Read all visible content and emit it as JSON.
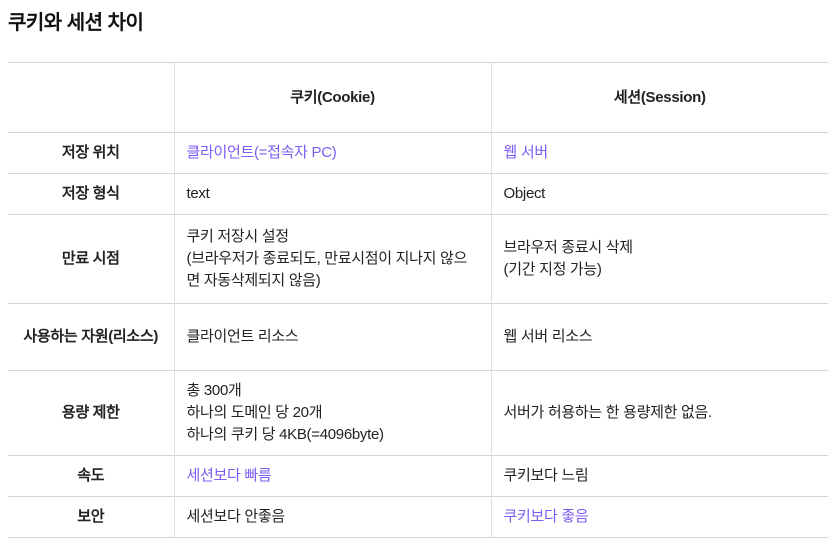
{
  "page": {
    "title": "쿠키와 세션 차이"
  },
  "colors": {
    "accent": "#7d5cf5",
    "text": "#222222",
    "row_border": "#d5d5d5",
    "column_border": "#e2e2e2"
  },
  "table": {
    "header": {
      "label": "",
      "cookie": "쿠키(Cookie)",
      "session": "세션(Session)"
    },
    "rows": [
      {
        "label": "저장 위치",
        "cookie": "클라이언트(=접속자 PC)",
        "session": "웹 서버"
      },
      {
        "label": "저장 형식",
        "cookie": "text",
        "session": "Object"
      },
      {
        "label": "만료 시점",
        "cookie": "쿠키 저장시 설정\n(브라우저가 종료되도, 만료시점이 지나지 않으면 자동삭제되지 않음)",
        "session": "브라우저 종료시 삭제\n(기간 지정 가능)"
      },
      {
        "label": "사용하는 자원(리소스)",
        "cookie": "클라이언트 리소스",
        "session": "웹 서버 리소스"
      },
      {
        "label": "용량 제한",
        "cookie": "총 300개\n하나의 도메인 당 20개\n하나의 쿠키 당 4KB(=4096byte)",
        "session": "서버가 허용하는 한 용량제한 없음."
      },
      {
        "label": "속도",
        "cookie": "세션보다 빠름",
        "session": "쿠키보다 느림"
      },
      {
        "label": "보안",
        "cookie": "세션보다 안좋음",
        "session": "쿠키보다 좋음"
      }
    ]
  }
}
